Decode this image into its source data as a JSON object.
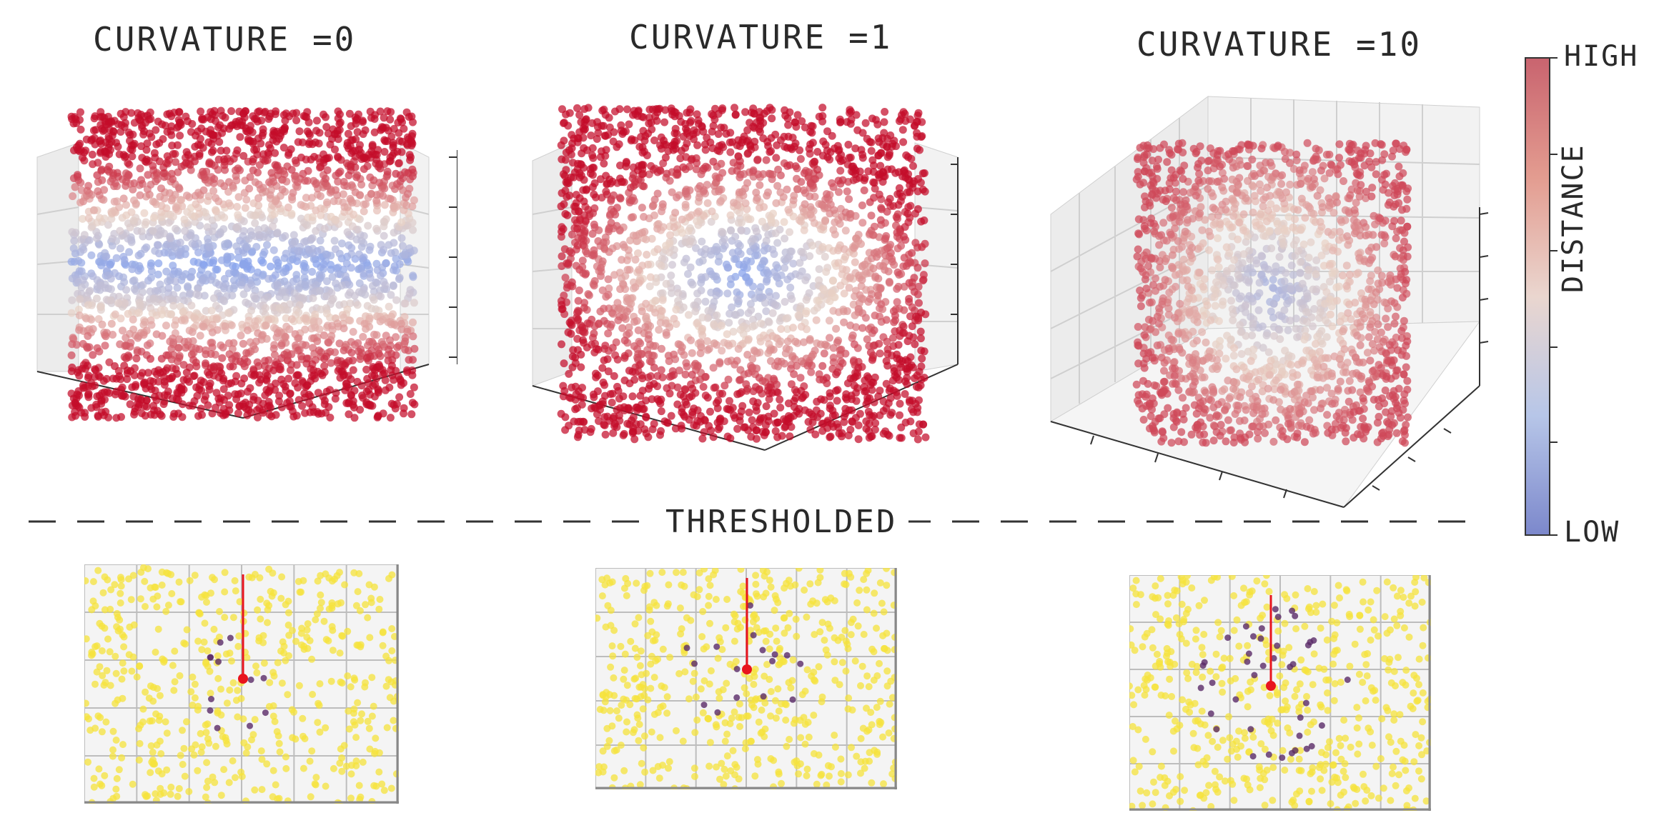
{
  "titles": [
    "CURVATURE =0",
    "CURVATURE =1",
    "CURVATURE =10"
  ],
  "divider_label": "THRESHOLDED",
  "colorbar": {
    "high_label": "HIGH",
    "low_label": "LOW",
    "axis_label": "DISTANCE",
    "colors": [
      "#c9646f",
      "#e39c90",
      "#ead6cf",
      "#b7c6e8",
      "#7c88cc"
    ]
  },
  "colors": {
    "high": "#c40d2a",
    "mid": "#e9d2c6",
    "low": "#7b9cf0",
    "threshold_out": "#f5e33c",
    "threshold_in": "#5a2a68",
    "marker": "#e8141e"
  },
  "panels": [
    {
      "curvature": 0,
      "view": "side"
    },
    {
      "curvature": 1,
      "view": "side"
    },
    {
      "curvature": 10,
      "view": "oblique"
    }
  ]
}
